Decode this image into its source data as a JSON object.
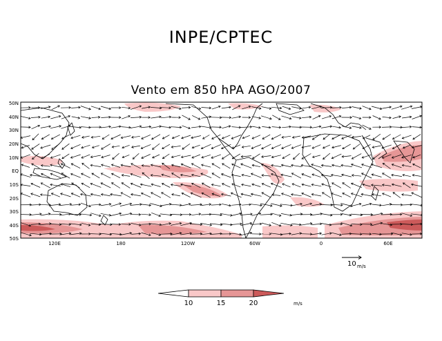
{
  "header": {
    "institution": "INPE/CPTEC"
  },
  "map": {
    "title": "Vento em 850 hPA AGO/2007",
    "lat_labels": [
      "50N",
      "40N",
      "30N",
      "20N",
      "10N",
      "EQ",
      "10S",
      "20S",
      "30S",
      "40S",
      "50S"
    ],
    "lon_labels": [
      "120E",
      "180",
      "120W",
      "60W",
      "0",
      "60E"
    ],
    "colors": {
      "fill_light": "#f9c8c8",
      "fill_medium": "#e69696",
      "fill_strong": "#cc5a5a",
      "arrow": "#000000",
      "coast": "#000000"
    }
  },
  "reference_vector": {
    "value": "10",
    "unit": "m/s"
  },
  "colorbar": {
    "ticks": [
      "10",
      "15",
      "20"
    ],
    "unit": "m/s",
    "colors": [
      "#ffffff",
      "#f9c8c8",
      "#e69696",
      "#cc5a5a"
    ]
  }
}
